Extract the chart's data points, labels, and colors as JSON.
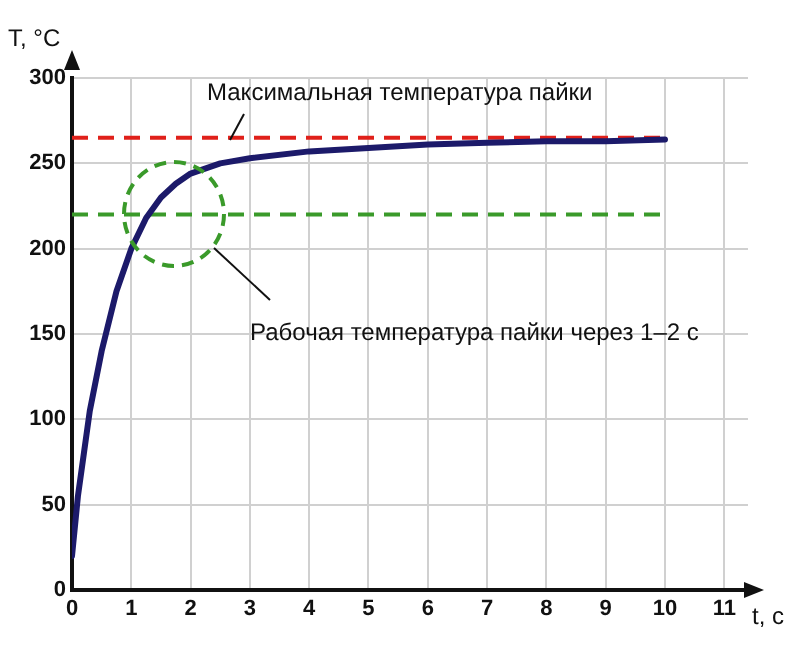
{
  "chart_data": {
    "type": "line",
    "xlabel": "t, c",
    "ylabel": "T, °C",
    "xlim": [
      0,
      11.4
    ],
    "xticks": [
      0,
      1,
      2,
      3,
      4,
      5,
      6,
      7,
      8,
      9,
      10,
      11
    ],
    "ylim": [
      0,
      300
    ],
    "yticks": [
      0,
      50,
      100,
      150,
      200,
      250,
      300
    ],
    "grid": true,
    "legend": false,
    "marker": "none",
    "line_style": "solid",
    "series": [
      {
        "color": "#1c1a6a",
        "x": [
          0,
          0.1,
          0.2,
          0.3,
          0.5,
          0.75,
          1,
          1.25,
          1.5,
          1.75,
          2,
          2.5,
          3,
          4,
          5,
          6,
          7,
          8,
          9,
          10
        ],
        "values": [
          20,
          55,
          80,
          105,
          140,
          175,
          200,
          218,
          230,
          238,
          244,
          250,
          253,
          257,
          259,
          261,
          262,
          263,
          263,
          264
        ]
      }
    ],
    "ref_lines": [
      {
        "axis": "y",
        "value": 265,
        "label": "Максимальная температура пайки",
        "color": "#e0201a",
        "line_style": "dashed"
      },
      {
        "axis": "y",
        "value": 220,
        "color": "#3a9a2a",
        "line_style": "dashed"
      }
    ],
    "annotations": [
      "Рабочая температура пайки через 1–2 с"
    ]
  }
}
